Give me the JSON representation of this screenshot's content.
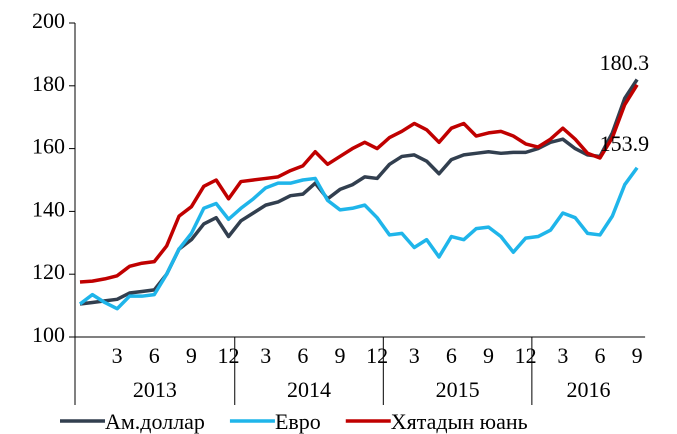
{
  "chart_data": {
    "type": "line",
    "categories": [
      null,
      null,
      null,
      "3",
      null,
      null,
      "6",
      null,
      null,
      "9",
      null,
      null,
      "12",
      null,
      null,
      "3",
      null,
      null,
      "6",
      null,
      null,
      "9",
      null,
      null,
      "12",
      null,
      null,
      "3",
      null,
      null,
      "6",
      null,
      null,
      "9",
      null,
      null,
      "12",
      null,
      null,
      "3",
      null,
      null,
      "6",
      null,
      null,
      "9"
    ],
    "years": [
      "2013",
      "2014",
      "2015",
      "2016"
    ],
    "series": [
      {
        "name": "Ам.доллар",
        "color": "#323f4f",
        "values": [
          110.5,
          111,
          111.5,
          112,
          114,
          114.5,
          115,
          120,
          128,
          131,
          136,
          138,
          132,
          137,
          139.5,
          142,
          143,
          145,
          145.5,
          149,
          144,
          147,
          148.5,
          151,
          150.5,
          155,
          157.5,
          158,
          156,
          152,
          156.5,
          158,
          158.5,
          159,
          158.5,
          158.8,
          158.8,
          160,
          162,
          163,
          160,
          158,
          157.5,
          165,
          176,
          182
        ]
      },
      {
        "name": "Евро",
        "color": "#1fb5ea",
        "values": [
          110.5,
          113.5,
          111,
          109,
          113,
          113,
          113.5,
          120,
          128,
          133,
          141,
          142.5,
          137.5,
          141,
          144,
          147.5,
          149,
          149,
          150,
          150.5,
          143.5,
          140.5,
          141,
          142,
          138,
          132.5,
          133,
          128.5,
          131,
          125.5,
          132,
          131,
          134.5,
          135,
          132,
          127,
          131.5,
          132,
          134,
          139.5,
          138,
          133,
          132.5,
          138.5,
          148.5,
          153.9
        ]
      },
      {
        "name": "Хятадын юань",
        "color": "#c00000",
        "values": [
          117.5,
          117.8,
          118.5,
          119.5,
          122.5,
          123.5,
          124,
          129,
          138.5,
          141.5,
          148,
          150,
          144,
          149.5,
          150,
          150.5,
          151,
          153,
          154.5,
          159,
          155,
          157.5,
          160,
          162,
          160,
          163.5,
          165.5,
          168,
          166,
          162,
          166.5,
          168,
          164,
          165,
          165.5,
          164,
          161.5,
          160.5,
          163,
          166.5,
          163,
          158.5,
          157,
          163.5,
          174,
          180.3
        ]
      }
    ],
    "ylim": [
      100,
      200
    ],
    "yticks": [
      100,
      120,
      140,
      160,
      180,
      200
    ],
    "grid": false
  }
}
